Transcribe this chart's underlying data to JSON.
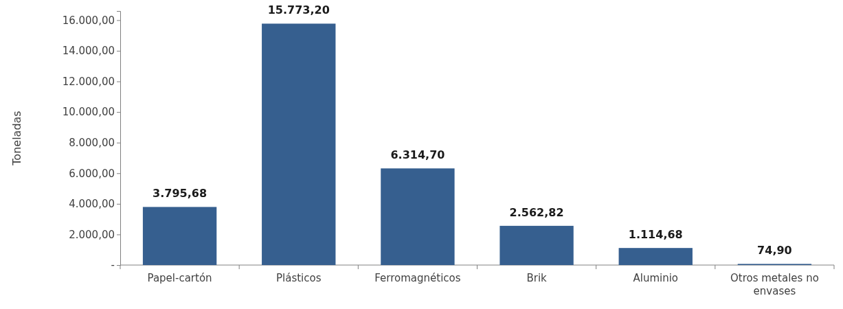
{
  "chart_data": {
    "type": "bar",
    "ylabel": "Toneladas",
    "categories": [
      "Papel-cartón",
      "Plásticos",
      "Ferromagnéticos",
      "Brik",
      "Aluminio",
      "Otros metales no envases"
    ],
    "values": [
      3795.68,
      15773.2,
      6314.7,
      2562.82,
      1114.68,
      74.9
    ],
    "value_labels": [
      "3.795,68",
      "15.773,20",
      "6.314,70",
      "2.562,82",
      "1.114,68",
      "74,90"
    ],
    "color": "#365f8f",
    "ylim": [
      0,
      16600
    ],
    "yticks": [
      {
        "value": 0,
        "label": "-"
      },
      {
        "value": 2000,
        "label": "2.000,00"
      },
      {
        "value": 4000,
        "label": "4.000,00"
      },
      {
        "value": 6000,
        "label": "6.000,00"
      },
      {
        "value": 8000,
        "label": "8.000,00"
      },
      {
        "value": 10000,
        "label": "10.000,00"
      },
      {
        "value": 12000,
        "label": "12.000,00"
      },
      {
        "value": 14000,
        "label": "14.000,00"
      },
      {
        "value": 16000,
        "label": "16.000,00"
      }
    ],
    "grid": false
  }
}
